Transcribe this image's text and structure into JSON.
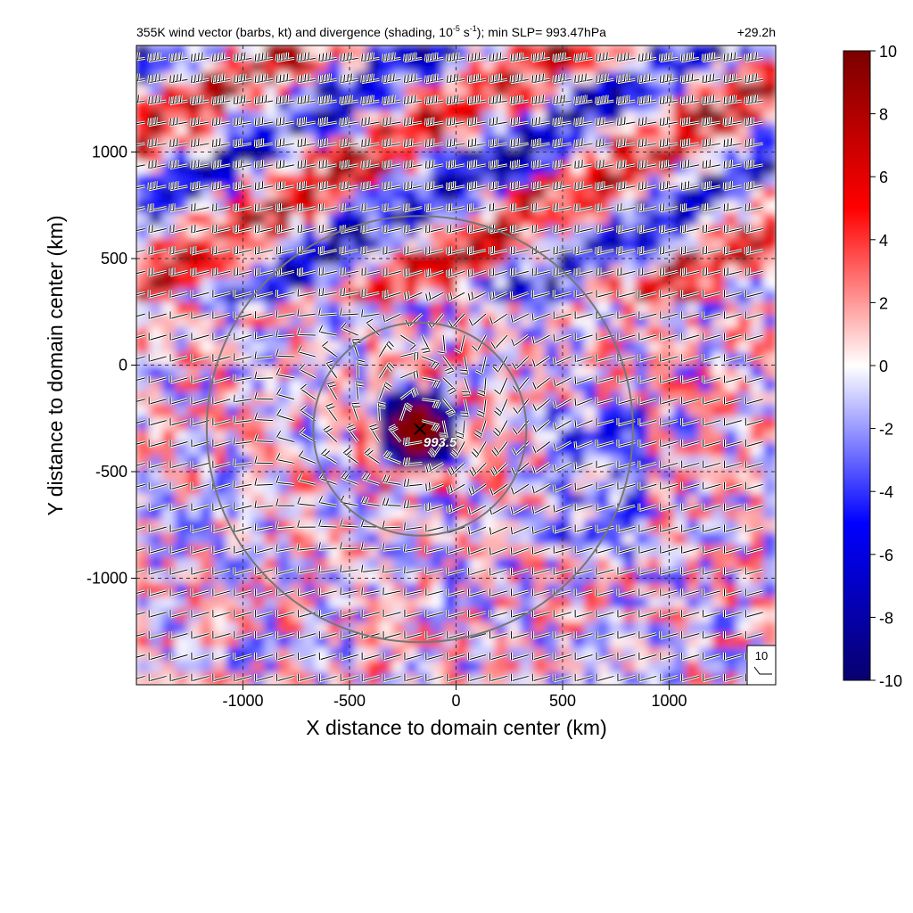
{
  "chart_data": {
    "type": "heatmap",
    "title_left": "355K wind vector (barbs, kt) and divergence (shading, 10",
    "title_sup1": "-5",
    "title_mid": " s",
    "title_sup2": "-1",
    "title_right": "); min SLP= 993.47hPa",
    "time_label": "+29.2h",
    "xlabel": "X distance to domain center (km)",
    "ylabel": "Y distance to domain center (km)",
    "xlim": [
      -1500,
      1500
    ],
    "ylim": [
      -1500,
      1500
    ],
    "x_ticks": [
      -1000,
      -500,
      0,
      500,
      1000
    ],
    "y_ticks": [
      1000,
      500,
      0,
      -500,
      -1000
    ],
    "x_tick_labels": [
      "-1000",
      "-500",
      "0",
      "500",
      "1000"
    ],
    "y_tick_labels": [
      "1000",
      "500",
      "0",
      "-500",
      "-1000"
    ],
    "grid": true,
    "colorbar": {
      "min": -10,
      "max": 10,
      "ticks": [
        10,
        8,
        6,
        4,
        2,
        0,
        -2,
        -4,
        -6,
        -8,
        -10
      ],
      "tick_labels": [
        "10",
        "8",
        "6",
        "4",
        "2",
        "0",
        "-2",
        "-4",
        "-6",
        "-8",
        "-10"
      ],
      "colormap": [
        "#08006e",
        "#0000ff",
        "#ffffff",
        "#ff0000",
        "#7a0000"
      ]
    },
    "storm_center": {
      "x": -170,
      "y": -300,
      "label": "993.5"
    },
    "range_rings_km": [
      500,
      1000
    ],
    "reference_barb": {
      "label": "10"
    }
  }
}
